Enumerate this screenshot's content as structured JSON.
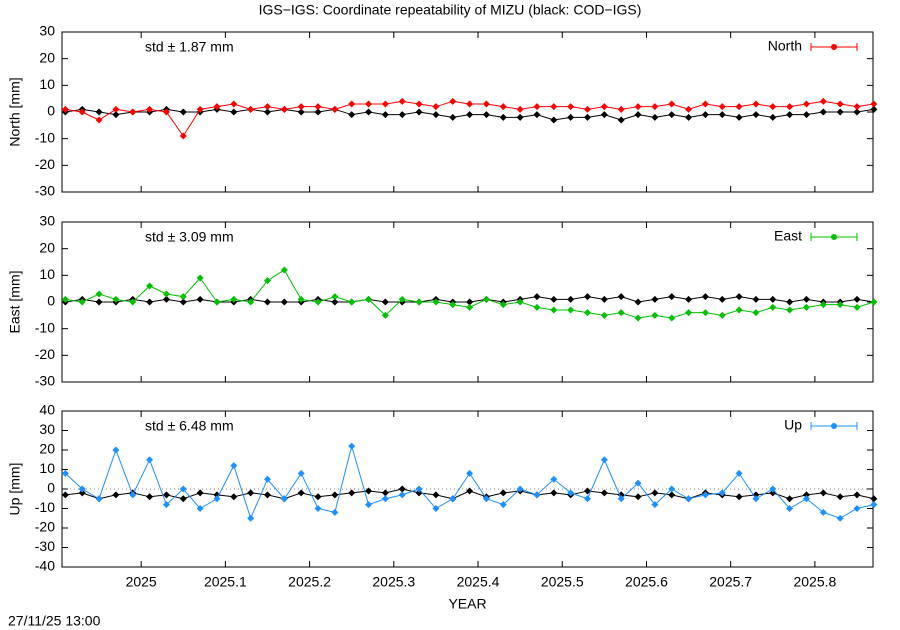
{
  "title": "IGS−IGS: Coordinate repeatability of MIZU (black: COD−IGS)",
  "timestamp": "27/11/25 13:00",
  "chart_data": [
    {
      "type": "line",
      "ylabel": "North [mm]",
      "annotation": "std ± 1.87 mm",
      "legend": "top-right",
      "xlim": [
        2024.906,
        2025.869
      ],
      "ylim": [
        -30,
        30
      ],
      "yticks": [
        -30,
        -20,
        -10,
        0,
        10,
        20,
        30
      ],
      "x": [
        2024.91,
        2024.93,
        2024.95,
        2024.97,
        2024.99,
        2025.01,
        2025.03,
        2025.05,
        2025.07,
        2025.09,
        2025.11,
        2025.13,
        2025.15,
        2025.17,
        2025.19,
        2025.21,
        2025.23,
        2025.25,
        2025.27,
        2025.29,
        2025.31,
        2025.33,
        2025.35,
        2025.37,
        2025.39,
        2025.41,
        2025.43,
        2025.45,
        2025.47,
        2025.49,
        2025.51,
        2025.53,
        2025.55,
        2025.57,
        2025.59,
        2025.61,
        2025.63,
        2025.65,
        2025.67,
        2025.69,
        2025.71,
        2025.73,
        2025.75,
        2025.77,
        2025.79,
        2025.81,
        2025.83,
        2025.85,
        2025.87
      ],
      "series": [
        {
          "name": "North",
          "color": "#ff0000",
          "values": [
            1,
            0,
            -3,
            1,
            0,
            1,
            0,
            -9,
            1,
            2,
            3,
            1,
            2,
            1,
            2,
            2,
            1,
            3,
            3,
            3,
            4,
            3,
            2,
            4,
            3,
            3,
            2,
            1,
            2,
            2,
            2,
            1,
            2,
            1,
            2,
            2,
            3,
            1,
            3,
            2,
            2,
            3,
            2,
            2,
            3,
            4,
            3,
            2,
            3
          ]
        },
        {
          "color": "#000000",
          "values": [
            0,
            1,
            0,
            -1,
            0,
            0,
            1,
            0,
            0,
            1,
            0,
            1,
            0,
            1,
            0,
            0,
            1,
            -1,
            0,
            -1,
            -1,
            0,
            -1,
            -2,
            -1,
            -1,
            -2,
            -2,
            -1,
            -3,
            -2,
            -2,
            -1,
            -3,
            -1,
            -2,
            -1,
            -2,
            -1,
            -1,
            -2,
            -1,
            -2,
            -1,
            -1,
            0,
            0,
            0,
            1
          ]
        }
      ]
    },
    {
      "type": "line",
      "ylabel": "East [mm]",
      "annotation": "std ± 3.09 mm",
      "legend": "top-right",
      "xlim": [
        2024.906,
        2025.869
      ],
      "ylim": [
        -30,
        30
      ],
      "yticks": [
        -30,
        -20,
        -10,
        0,
        10,
        20,
        30
      ],
      "x": [
        2024.91,
        2024.93,
        2024.95,
        2024.97,
        2024.99,
        2025.01,
        2025.03,
        2025.05,
        2025.07,
        2025.09,
        2025.11,
        2025.13,
        2025.15,
        2025.17,
        2025.19,
        2025.21,
        2025.23,
        2025.25,
        2025.27,
        2025.29,
        2025.31,
        2025.33,
        2025.35,
        2025.37,
        2025.39,
        2025.41,
        2025.43,
        2025.45,
        2025.47,
        2025.49,
        2025.51,
        2025.53,
        2025.55,
        2025.57,
        2025.59,
        2025.61,
        2025.63,
        2025.65,
        2025.67,
        2025.69,
        2025.71,
        2025.73,
        2025.75,
        2025.77,
        2025.79,
        2025.81,
        2025.83,
        2025.85,
        2025.87
      ],
      "series": [
        {
          "name": "East",
          "color": "#00c000",
          "values": [
            1,
            0,
            3,
            1,
            0,
            6,
            3,
            2,
            9,
            0,
            1,
            0,
            8,
            12,
            1,
            0,
            2,
            0,
            1,
            -5,
            1,
            0,
            0,
            -1,
            -2,
            1,
            -1,
            0,
            -2,
            -3,
            -3,
            -4,
            -5,
            -4,
            -6,
            -5,
            -6,
            -4,
            -4,
            -5,
            -3,
            -4,
            -2,
            -3,
            -2,
            -1,
            -1,
            -2,
            0
          ]
        },
        {
          "color": "#000000",
          "values": [
            0,
            1,
            0,
            0,
            1,
            0,
            1,
            0,
            1,
            0,
            0,
            1,
            0,
            0,
            0,
            1,
            0,
            0,
            1,
            0,
            0,
            0,
            1,
            0,
            0,
            1,
            0,
            1,
            2,
            1,
            1,
            2,
            1,
            2,
            0,
            1,
            2,
            1,
            2,
            1,
            2,
            1,
            1,
            0,
            1,
            0,
            0,
            1,
            0
          ]
        }
      ]
    },
    {
      "type": "line",
      "ylabel": "Up [mm]",
      "annotation": "std ± 6.48 mm",
      "legend": "top-right",
      "zero_line": true,
      "xlabel": "YEAR",
      "xlim": [
        2024.906,
        2025.869
      ],
      "xticks": [
        2025,
        2025.1,
        2025.2,
        2025.3,
        2025.4,
        2025.5,
        2025.6,
        2025.7,
        2025.8
      ],
      "ylim": [
        -40,
        40
      ],
      "yticks": [
        -40,
        -30,
        -20,
        -10,
        0,
        10,
        20,
        30,
        40
      ],
      "x": [
        2024.91,
        2024.93,
        2024.95,
        2024.97,
        2024.99,
        2025.01,
        2025.03,
        2025.05,
        2025.07,
        2025.09,
        2025.11,
        2025.13,
        2025.15,
        2025.17,
        2025.19,
        2025.21,
        2025.23,
        2025.25,
        2025.27,
        2025.29,
        2025.31,
        2025.33,
        2025.35,
        2025.37,
        2025.39,
        2025.41,
        2025.43,
        2025.45,
        2025.47,
        2025.49,
        2025.51,
        2025.53,
        2025.55,
        2025.57,
        2025.59,
        2025.61,
        2025.63,
        2025.65,
        2025.67,
        2025.69,
        2025.71,
        2025.73,
        2025.75,
        2025.77,
        2025.79,
        2025.81,
        2025.83,
        2025.85,
        2025.87
      ],
      "series": [
        {
          "name": "Up",
          "color": "#1e90ff",
          "values": [
            8,
            0,
            -5,
            20,
            -3,
            15,
            -8,
            0,
            -10,
            -5,
            12,
            -15,
            5,
            -5,
            8,
            -10,
            -12,
            22,
            -8,
            -5,
            -3,
            0,
            -10,
            -5,
            8,
            -5,
            -8,
            0,
            -3,
            5,
            -2,
            -5,
            15,
            -5,
            3,
            -8,
            0,
            -5,
            -3,
            -2,
            8,
            -5,
            0,
            -10,
            -5,
            -12,
            -15,
            -10,
            -8
          ]
        },
        {
          "color": "#000000",
          "values": [
            -3,
            -2,
            -5,
            -3,
            -2,
            -4,
            -3,
            -5,
            -2,
            -3,
            -4,
            -2,
            -3,
            -5,
            -2,
            -4,
            -3,
            -2,
            -1,
            -2,
            0,
            -2,
            -3,
            -5,
            -1,
            -4,
            -2,
            -1,
            -3,
            -2,
            -3,
            -1,
            -2,
            -3,
            -4,
            -2,
            -3,
            -5,
            -2,
            -3,
            -4,
            -3,
            -2,
            -5,
            -3,
            -2,
            -4,
            -3,
            -5
          ]
        }
      ]
    }
  ]
}
